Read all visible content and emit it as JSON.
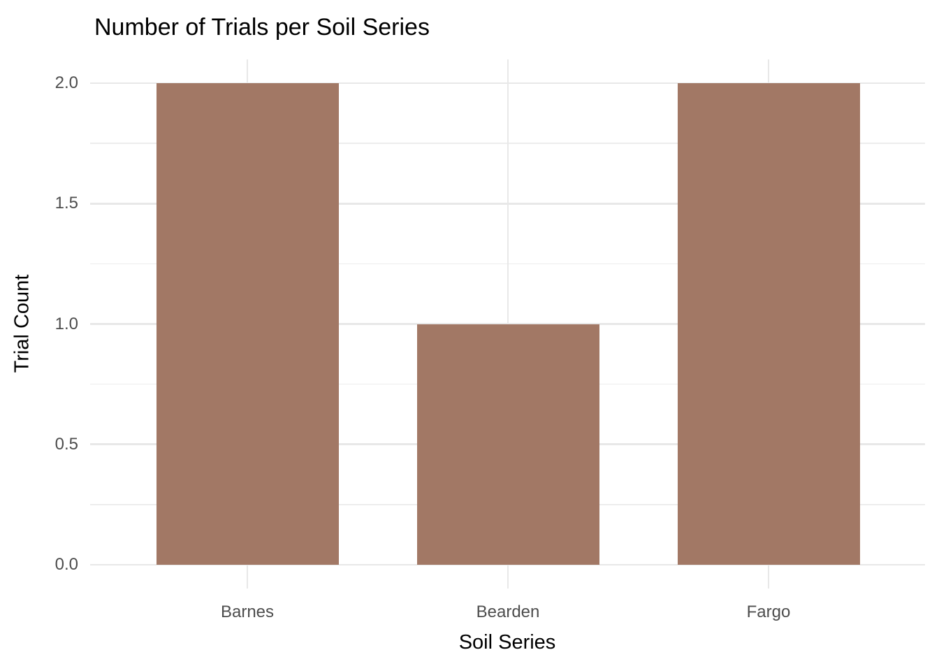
{
  "chart_data": {
    "type": "bar",
    "title": "Number of Trials per Soil Series",
    "xlabel": "Soil Series",
    "ylabel": "Trial Count",
    "categories": [
      "Barnes",
      "Bearden",
      "Fargo"
    ],
    "values": [
      2,
      1,
      2
    ],
    "ylim": [
      0,
      2
    ],
    "y_major_ticks": [
      0.0,
      0.5,
      1.0,
      1.5,
      2.0
    ],
    "y_tick_labels": [
      "0.0",
      "0.5",
      "1.0",
      "1.5",
      "2.0"
    ],
    "y_minor_ticks": [
      0.25,
      0.75,
      1.25,
      1.75
    ],
    "grid": "major-and-minor-horizontal, major-vertical-at-categories",
    "legend_position": "none",
    "colors": {
      "bar_fill": "#A27865",
      "grid_major": "#E8E8E8",
      "grid_minor": "#EDEDED",
      "tick_label": "#4D4D4D",
      "title_text": "#000000",
      "axis_title_text": "#000000",
      "panel_background": "#FFFFFF"
    }
  }
}
